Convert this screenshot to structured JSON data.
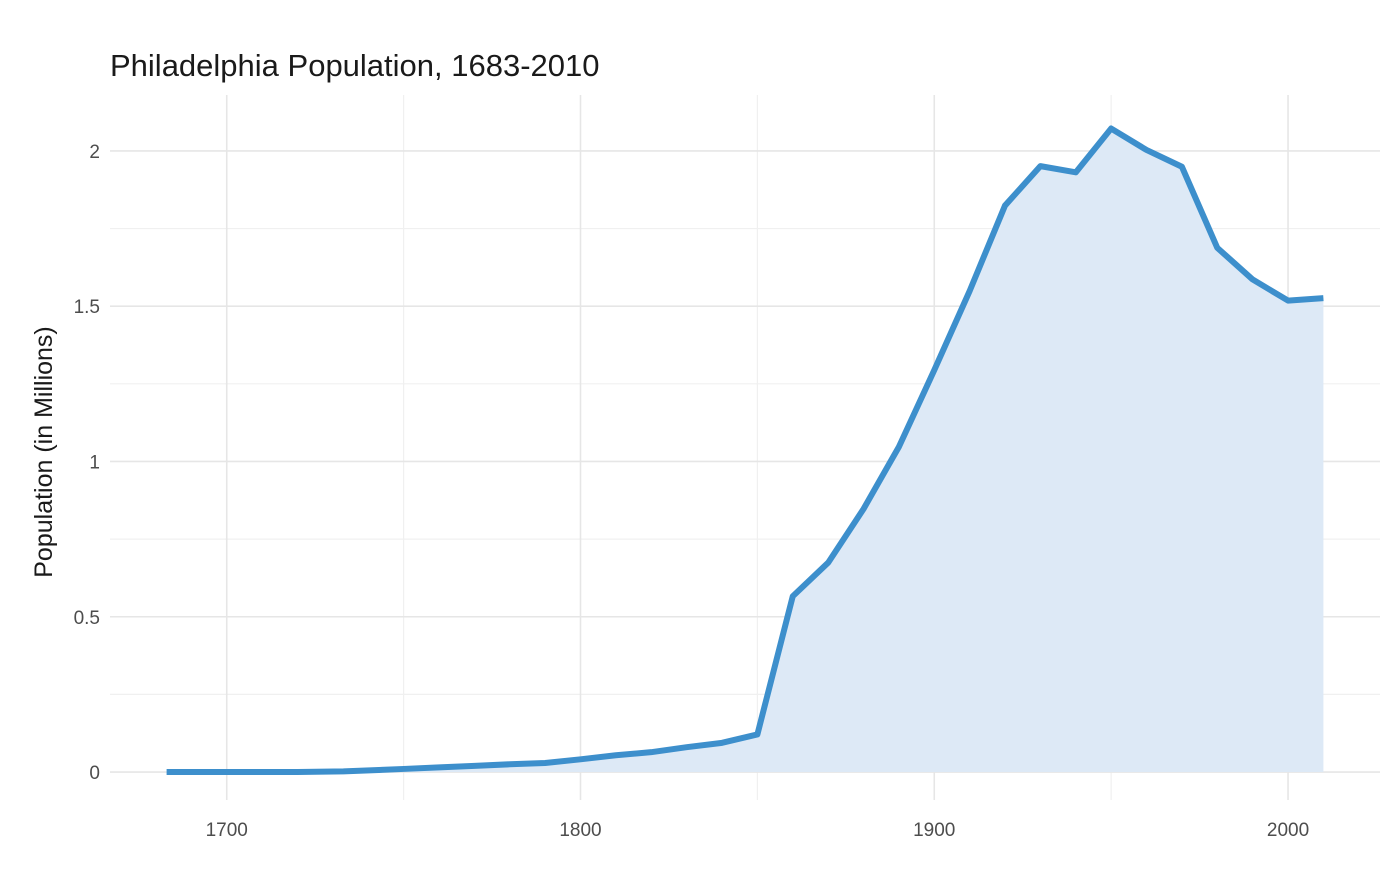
{
  "chart_data": {
    "type": "area",
    "title": "Philadelphia Population, 1683-2010",
    "xlabel": "",
    "ylabel": "Population (in Millions)",
    "xlim": [
      1667,
      2026
    ],
    "ylim": [
      -0.09,
      2.18
    ],
    "x_ticks": [
      1700,
      1800,
      1900,
      2000
    ],
    "x_tick_labels": [
      "1700",
      "1800",
      "1900",
      "2000"
    ],
    "x_minor_ticks": [
      1750,
      1850,
      1950
    ],
    "y_ticks": [
      0,
      0.5,
      1,
      1.5,
      2
    ],
    "y_tick_labels": [
      "0",
      "0.5",
      "1",
      "1.5",
      "2"
    ],
    "y_minor_ticks": [
      0.25,
      0.75,
      1.25,
      1.75
    ],
    "grid": true,
    "legend": "none",
    "colors": {
      "line": "#3d8fcc",
      "fill": "#dde9f6",
      "grid_major": "#e6e6e6",
      "grid_minor": "#f0f0f0"
    },
    "series": [
      {
        "x": [
          1683,
          1700,
          1720,
          1733,
          1750,
          1760,
          1770,
          1780,
          1790,
          1800,
          1810,
          1820,
          1830,
          1840,
          1850,
          1860,
          1870,
          1880,
          1890,
          1900,
          1910,
          1920,
          1930,
          1940,
          1950,
          1960,
          1970,
          1980,
          1990,
          2000,
          2010
        ],
        "y": [
          0.0,
          0.0,
          0.0,
          0.002,
          0.01,
          0.015,
          0.02,
          0.025,
          0.029,
          0.041,
          0.054,
          0.064,
          0.08,
          0.094,
          0.121,
          0.566,
          0.674,
          0.847,
          1.047,
          1.294,
          1.549,
          1.824,
          1.951,
          1.931,
          2.072,
          2.003,
          1.949,
          1.688,
          1.586,
          1.518,
          1.526
        ]
      }
    ]
  }
}
